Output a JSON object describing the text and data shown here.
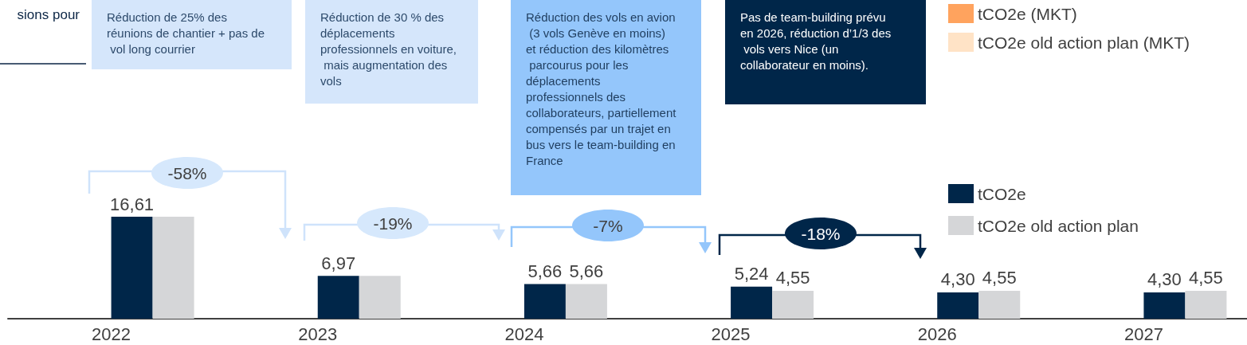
{
  "chart_data": {
    "type": "bar",
    "title": "sions pour",
    "categories": [
      "2022",
      "2023",
      "2024",
      "2025",
      "2026",
      "2027"
    ],
    "series": [
      {
        "name": "tCO2e (MKT)",
        "color": "#ffa35e",
        "values": [
          null,
          null,
          null,
          null,
          null,
          null
        ]
      },
      {
        "name": "tCO2e old action plan (MKT)",
        "color": "#ffe3c6",
        "values": [
          null,
          null,
          null,
          null,
          null,
          null
        ]
      },
      {
        "name": "tCO2e",
        "color": "#002649",
        "values": [
          16.61,
          6.97,
          5.66,
          5.24,
          4.3,
          4.3
        ],
        "value_labels": [
          "16,61",
          "6,97",
          "5,66",
          "5,24",
          "4,30",
          "4,30"
        ]
      },
      {
        "name": "tCO2e old action plan",
        "color": "#d5d6d8",
        "values": [
          16.61,
          6.97,
          5.66,
          4.55,
          4.55,
          4.55
        ],
        "value_labels": [
          null,
          null,
          "5,66",
          "4,55",
          "4,55",
          "4,55"
        ]
      }
    ],
    "annotations": [
      "Réduction de 25% des réunions de chantier + pas de vol long courrier",
      "Réduction de 30 % des déplacements professionnels en voiture, mais augmentation des vols",
      "Réduction des vols en avion (3 vols Genève en moins) et réduction des kilomètres parcourus pour les déplacements professionnels des collaborateurs, partiellement compensés par un trajet en bus vers le team-building en France",
      "Pas de team-building prévu en 2026, réduction d’1/3 des vols vers Nice (un collaborateur en moins).",
      "-58%",
      "-19%",
      "-7%",
      "-18%"
    ],
    "legend": "right",
    "grid": false
  }
}
